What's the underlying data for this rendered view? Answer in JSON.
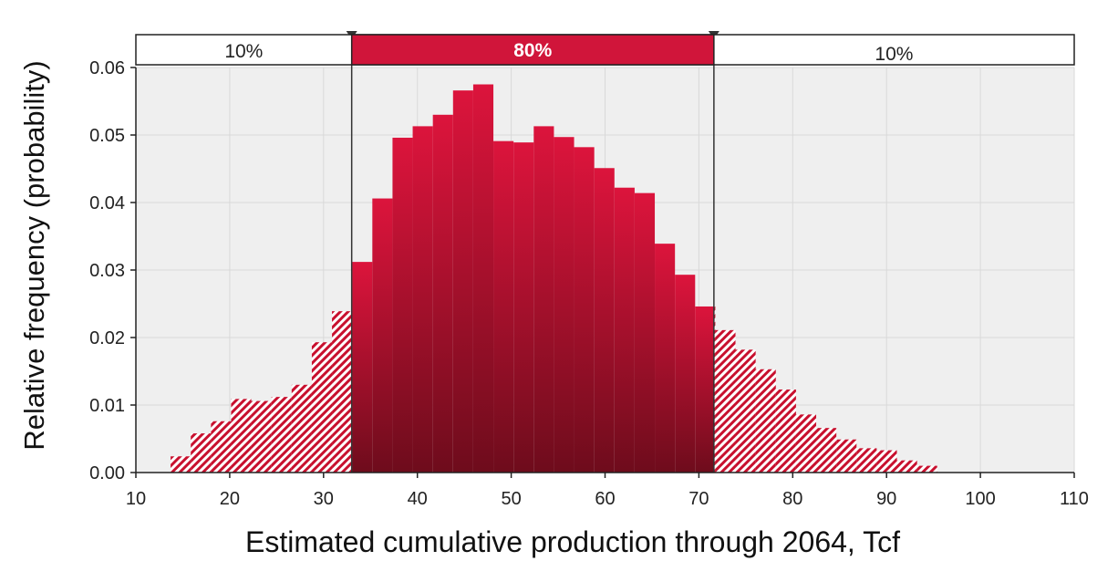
{
  "chart_data": {
    "type": "bar",
    "title": "",
    "xlabel": "Estimated cumulative production through 2064, Tcf",
    "ylabel": "Relative frequency (probability)",
    "xlim": [
      10,
      110
    ],
    "ylim": [
      0,
      0.06
    ],
    "x_ticks": [
      "10",
      "20",
      "30",
      "40",
      "50",
      "60",
      "70",
      "80",
      "90",
      "100",
      "110"
    ],
    "y_ticks": [
      "0.00",
      "0.01",
      "0.02",
      "0.03",
      "0.04",
      "0.05",
      "0.06"
    ],
    "grid": true,
    "bin_width": 2.15,
    "bin_edges_start": 13.7,
    "values": [
      0.0024,
      0.0058,
      0.0076,
      0.0109,
      0.0106,
      0.0112,
      0.013,
      0.0193,
      0.0239,
      0.0312,
      0.0406,
      0.0496,
      0.0513,
      0.053,
      0.0566,
      0.0575,
      0.0491,
      0.0489,
      0.0513,
      0.0497,
      0.0482,
      0.0451,
      0.0422,
      0.0414,
      0.0339,
      0.0293,
      0.0246,
      0.0211,
      0.0182,
      0.0153,
      0.0123,
      0.0086,
      0.0066,
      0.0049,
      0.0036,
      0.0033,
      0.0018,
      0.001
    ],
    "percentile_markers": [
      33.0,
      71.6
    ],
    "bands": [
      {
        "label": "10%",
        "region": "lower tail"
      },
      {
        "label": "80%",
        "region": "central"
      },
      {
        "label": "10%",
        "region": "upper tail"
      }
    ],
    "colors": {
      "central_top": "#dc143c",
      "central_bottom": "#6e0c1c",
      "tail": "#c8102e",
      "band_fill": "#d0153a",
      "grid": "#d9d9d9"
    }
  }
}
